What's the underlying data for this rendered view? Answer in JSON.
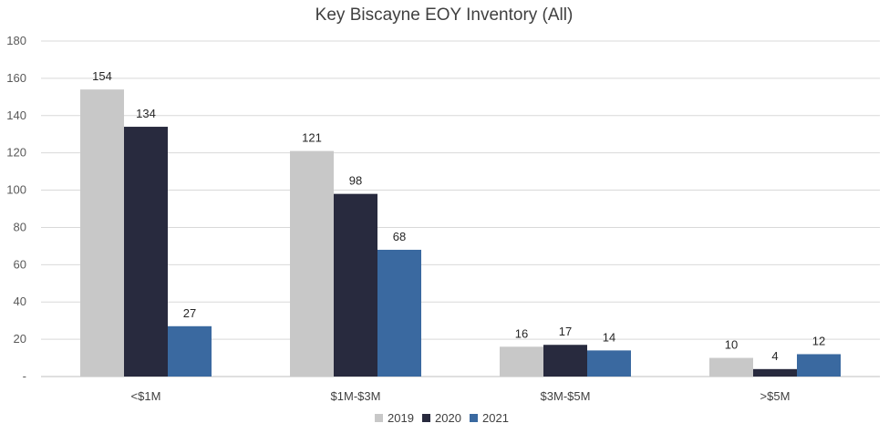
{
  "chart_data": {
    "type": "bar",
    "title": "Key Biscayne EOY Inventory (All)",
    "xlabel": "",
    "ylabel": "",
    "categories": [
      "<$1M",
      "$1M-$3M",
      "$3M-$5M",
      ">$5M"
    ],
    "series": [
      {
        "name": "2019",
        "values": [
          154,
          121,
          16,
          10
        ],
        "color": "#c8c8c8"
      },
      {
        "name": "2020",
        "values": [
          134,
          98,
          17,
          4
        ],
        "color": "#282a3e"
      },
      {
        "name": "2021",
        "values": [
          27,
          68,
          14,
          12
        ],
        "color": "#3a69a0"
      }
    ],
    "ylim": [
      0,
      180
    ],
    "yticks": [
      "-",
      "20",
      "40",
      "60",
      "80",
      "100",
      "120",
      "140",
      "160",
      "180"
    ],
    "ytick_values": [
      0,
      20,
      40,
      60,
      80,
      100,
      120,
      140,
      160,
      180
    ],
    "grid": true,
    "data_labels": true,
    "legend_position": "bottom"
  }
}
